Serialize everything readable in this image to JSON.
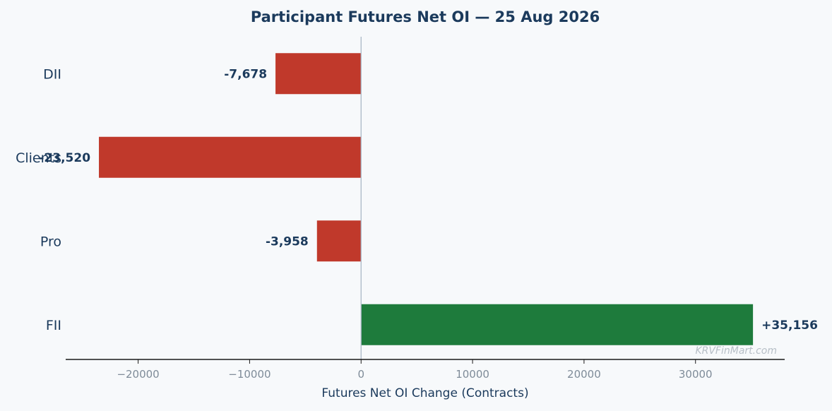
{
  "chart_data": {
    "type": "bar",
    "orientation": "horizontal",
    "title": "Participant Futures Net OI — 25 Aug 2026",
    "xlabel": "Futures Net OI Change (Contracts)",
    "ylabel": "",
    "categories": [
      "DII",
      "Clients",
      "Pro",
      "FII"
    ],
    "values": [
      -7678,
      -23520,
      -3958,
      35156
    ],
    "value_labels": [
      "-7,678",
      "-23,520",
      "-3,958",
      "+35,156"
    ],
    "xlim": [
      -26500,
      38000
    ],
    "xticks": [
      -20000,
      -10000,
      0,
      10000,
      20000,
      30000
    ],
    "xtick_labels": [
      "−20000",
      "−10000",
      "0",
      "10000",
      "20000",
      "30000"
    ],
    "grid": false,
    "legend": "none",
    "colors": {
      "negative": "#c0392b",
      "positive": "#1e7b3c",
      "text": "#1b3a5c",
      "zero_line": "#a9b8c6"
    },
    "watermark": "KRVFinMart.com"
  }
}
